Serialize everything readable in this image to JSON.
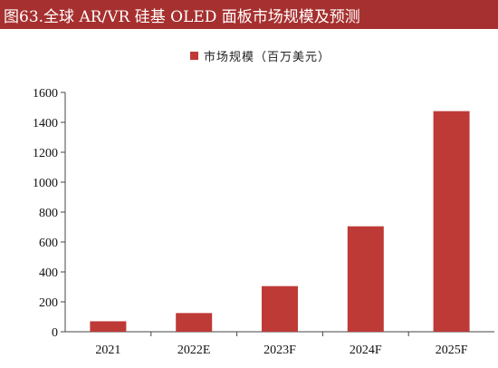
{
  "page": {
    "title": "图63.全球 AR/VR 硅基 OLED 面板市场规模及预测"
  },
  "colors": {
    "title_bar": "#a6302f",
    "bar": "#be3a36",
    "axis": "#444444"
  },
  "chart_data": {
    "type": "bar",
    "title": "",
    "xlabel": "",
    "ylabel": "",
    "categories": [
      "2021",
      "2022E",
      "2023F",
      "2024F",
      "2025F"
    ],
    "series": [
      {
        "name": "市场规模（百万美元）",
        "values": [
          70,
          125,
          305,
          705,
          1475
        ]
      }
    ],
    "ylim": [
      0,
      1600
    ],
    "yticks": [
      "0",
      "200",
      "400",
      "600",
      "800",
      "1000",
      "1200",
      "1400",
      "1600"
    ],
    "legend_position": "top-center",
    "grid": false
  }
}
